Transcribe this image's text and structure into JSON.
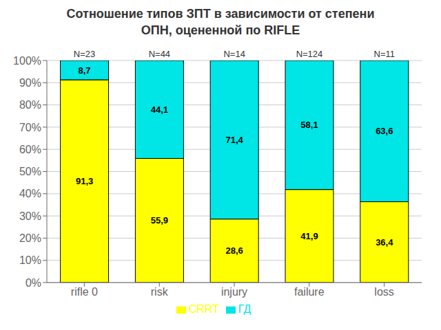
{
  "chart_data": {
    "type": "bar",
    "title": "Сотношение типов ЗПТ в зависимости от степени\nОПН, оцененной по RIFLE",
    "categories": [
      "rifle 0",
      "risk",
      "injury",
      "failure",
      "loss"
    ],
    "annotations": [
      "N=23",
      "N=44",
      "N=14",
      "N=124",
      "N=11"
    ],
    "series": [
      {
        "name": "CRRT",
        "color": "#FFFF00",
        "values": [
          91.3,
          55.9,
          28.6,
          41.9,
          36.4
        ],
        "value_labels": [
          "91,3",
          "55,9",
          "28,6",
          "41,9",
          "36,4"
        ]
      },
      {
        "name": "ГД",
        "color": "#00E5E5",
        "values": [
          8.7,
          44.1,
          71.4,
          58.1,
          63.6
        ],
        "value_labels": [
          "8,7",
          "44,1",
          "71,4",
          "58,1",
          "63,6"
        ]
      }
    ],
    "stacked": true,
    "data_labels": true,
    "ylim": [
      0,
      100
    ],
    "yticks": [
      {
        "value": 0,
        "label": "0%"
      },
      {
        "value": 10,
        "label": "10%"
      },
      {
        "value": 20,
        "label": "20%"
      },
      {
        "value": 30,
        "label": "30%"
      },
      {
        "value": 40,
        "label": "40%"
      },
      {
        "value": 50,
        "label": "50%"
      },
      {
        "value": 60,
        "label": "60%"
      },
      {
        "value": 70,
        "label": "70%"
      },
      {
        "value": 80,
        "label": "80%"
      },
      {
        "value": 90,
        "label": "90%"
      },
      {
        "value": 100,
        "label": "100%"
      }
    ],
    "grid": true,
    "legend": "bottom"
  }
}
